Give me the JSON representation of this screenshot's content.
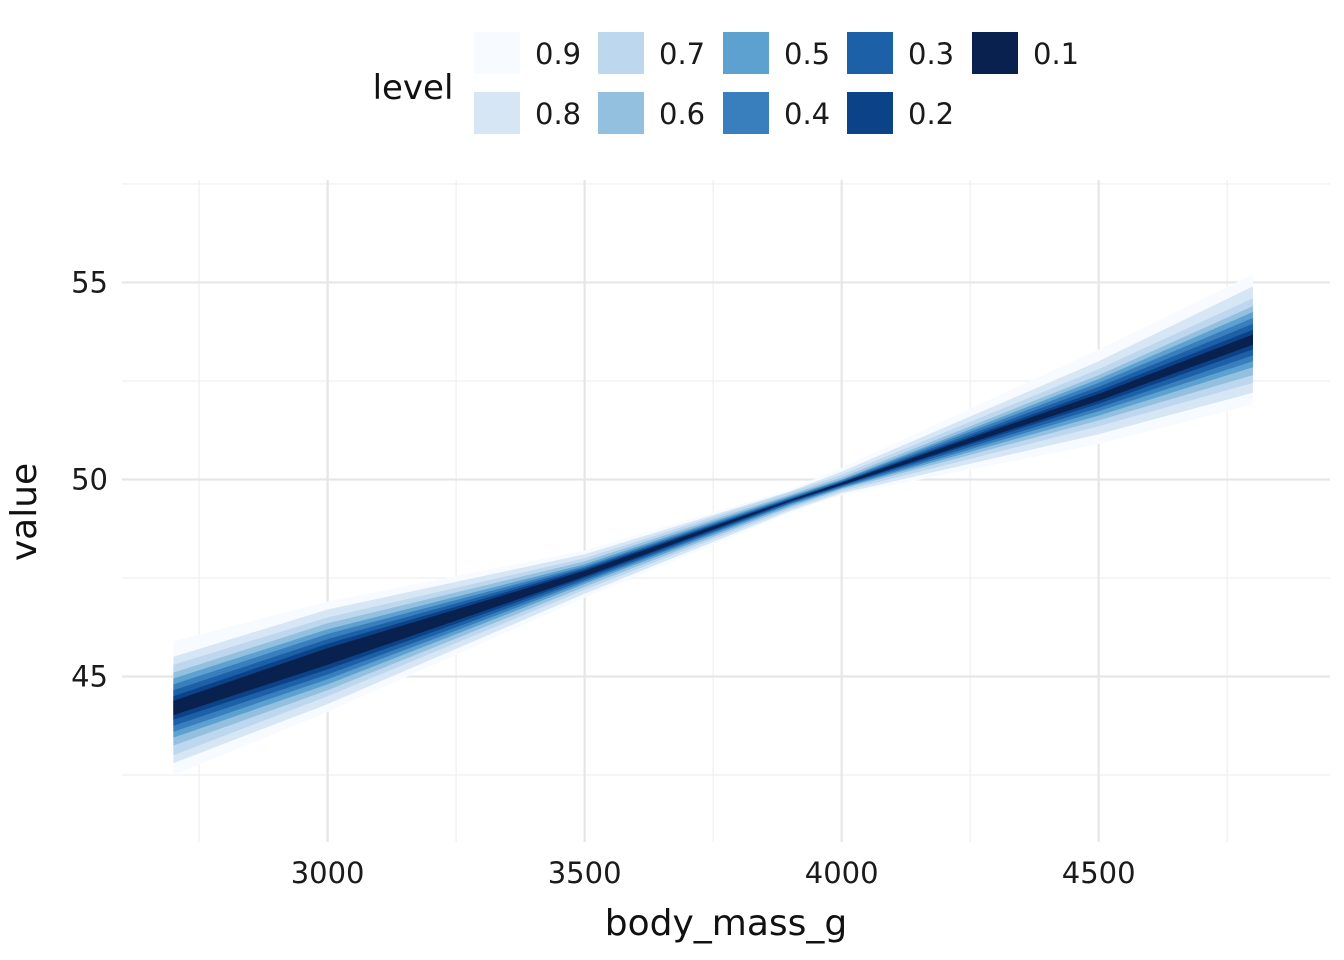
{
  "chart_data": {
    "type": "area",
    "xlabel": "body_mass_g",
    "ylabel": "value",
    "xlim": [
      2600,
      4950
    ],
    "ylim": [
      40.8,
      57.6
    ],
    "x_major_ticks": [
      3000,
      3500,
      4000,
      4500
    ],
    "x_minor_ticks": [
      2750,
      3250,
      3750,
      4250,
      4750
    ],
    "y_major_ticks": [
      45,
      50,
      55
    ],
    "y_minor_ticks": [
      42.5,
      47.5,
      52.5,
      57.5
    ],
    "x_tick_labels": [
      "3000",
      "3500",
      "4000",
      "4500"
    ],
    "y_tick_labels": [
      "45",
      "50",
      "55"
    ],
    "grid": true,
    "legend": {
      "title": "level",
      "placement": "top",
      "items": [
        {
          "label": "0.9",
          "color": "#f7fbff"
        },
        {
          "label": "0.8",
          "color": "#d6e6f4"
        },
        {
          "label": "0.7",
          "color": "#bdd7ee"
        },
        {
          "label": "0.6",
          "color": "#93c0de"
        },
        {
          "label": "0.5",
          "color": "#5da1d0"
        },
        {
          "label": "0.4",
          "color": "#3a7fbd"
        },
        {
          "label": "0.3",
          "color": "#1c60a8"
        },
        {
          "label": "0.2",
          "color": "#0b4288"
        },
        {
          "label": "0.1",
          "color": "#08214f"
        }
      ]
    },
    "center_line": {
      "x": [
        2700,
        3000,
        3500,
        4000,
        4500,
        4800
      ],
      "y": [
        44.2,
        45.5,
        47.6,
        49.9,
        52.1,
        53.6
      ]
    },
    "series": [
      {
        "name": "0.9",
        "color": "#f7fbff",
        "x": [
          2700,
          3000,
          3500,
          3900,
          4000,
          4500,
          4800
        ],
        "lower": [
          42.5,
          44.1,
          47.0,
          49.15,
          49.6,
          50.9,
          51.9
        ],
        "upper": [
          45.9,
          46.9,
          48.2,
          49.75,
          50.3,
          53.3,
          55.2
        ]
      },
      {
        "name": "0.8",
        "color": "#d6e6f4",
        "x": [
          2700,
          3000,
          3500,
          3900,
          4000,
          4500,
          4800
        ],
        "lower": [
          42.8,
          44.3,
          47.1,
          49.2,
          49.65,
          51.15,
          52.2
        ],
        "upper": [
          45.5,
          46.7,
          48.1,
          49.7,
          50.2,
          53.0,
          54.9
        ]
      },
      {
        "name": "0.7",
        "color": "#bdd7ee",
        "x": [
          2700,
          3000,
          3500,
          3900,
          4000,
          4500,
          4800
        ],
        "lower": [
          43.0,
          44.5,
          47.2,
          49.25,
          49.7,
          51.35,
          52.45
        ],
        "upper": [
          45.3,
          46.5,
          48.0,
          49.68,
          50.12,
          52.8,
          54.6
        ]
      },
      {
        "name": "0.6",
        "color": "#93c0de",
        "x": [
          2700,
          3000,
          3500,
          3900,
          4000,
          4500,
          4800
        ],
        "lower": [
          43.25,
          44.65,
          47.28,
          49.3,
          49.75,
          51.5,
          52.65
        ],
        "upper": [
          45.1,
          46.35,
          47.92,
          49.62,
          50.05,
          52.65,
          54.4
        ]
      },
      {
        "name": "0.5",
        "color": "#5da1d0",
        "x": [
          2700,
          3000,
          3500,
          3900,
          4000,
          4500,
          4800
        ],
        "lower": [
          43.45,
          44.8,
          47.35,
          49.34,
          49.78,
          51.62,
          52.85
        ],
        "upper": [
          44.95,
          46.2,
          47.85,
          49.58,
          50.0,
          52.55,
          54.25
        ]
      },
      {
        "name": "0.4",
        "color": "#3a7fbd",
        "x": [
          2700,
          3000,
          3500,
          3900,
          4000,
          4500,
          4800
        ],
        "lower": [
          43.6,
          44.93,
          47.4,
          49.38,
          49.8,
          51.73,
          53.0
        ],
        "upper": [
          44.8,
          46.08,
          47.8,
          49.55,
          49.98,
          52.45,
          54.1
        ]
      },
      {
        "name": "0.3",
        "color": "#1c60a8",
        "x": [
          2700,
          3000,
          3500,
          3900,
          4000,
          4500,
          4800
        ],
        "lower": [
          43.75,
          45.05,
          47.45,
          49.4,
          49.83,
          51.82,
          53.15
        ],
        "upper": [
          44.65,
          45.95,
          47.76,
          49.52,
          49.95,
          52.35,
          53.95
        ]
      },
      {
        "name": "0.2",
        "color": "#0b4288",
        "x": [
          2700,
          3000,
          3500,
          3900,
          4000,
          4500,
          4800
        ],
        "lower": [
          43.9,
          45.18,
          47.5,
          49.43,
          49.85,
          51.92,
          53.3
        ],
        "upper": [
          44.5,
          45.83,
          47.72,
          49.5,
          49.93,
          52.25,
          53.8
        ]
      },
      {
        "name": "0.1",
        "color": "#08214f",
        "x": [
          2700,
          3000,
          3500,
          3900,
          4000,
          4500,
          4800
        ],
        "lower": [
          44.02,
          45.3,
          47.54,
          49.45,
          49.86,
          52.0,
          53.42
        ],
        "upper": [
          44.38,
          45.72,
          47.68,
          49.48,
          49.92,
          52.17,
          53.68
        ]
      }
    ]
  }
}
